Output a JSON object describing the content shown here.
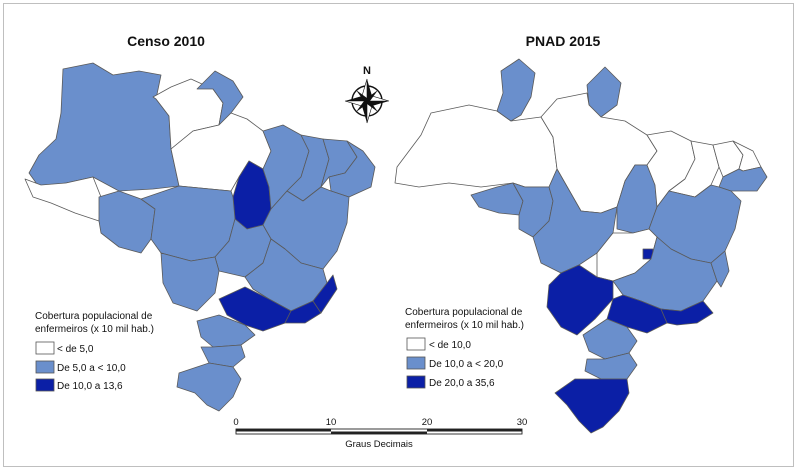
{
  "maps": [
    {
      "title": "Censo 2010",
      "legend": {
        "title_line1": "Cobertura populacional de",
        "title_line2": "enfermeiros (x 10 mil hab.)",
        "classes": [
          {
            "label": "< de 5,0",
            "color": "#ffffff"
          },
          {
            "label": "De 5,0 a < 10,0",
            "color": "#6a8fcc"
          },
          {
            "label": "De 10,0 a 13,6",
            "color": "#0b1fa6"
          }
        ]
      }
    },
    {
      "title": "PNAD 2015",
      "legend": {
        "title_line1": "Cobertura populacional de",
        "title_line2": "enfermeiros (x 10 mil hab.)",
        "classes": [
          {
            "label": "< de 10,0",
            "color": "#ffffff"
          },
          {
            "label": "De 10,0 a < 20,0",
            "color": "#6a8fcc"
          },
          {
            "label": "De 20,0 a 35,6",
            "color": "#0b1fa6"
          }
        ]
      }
    }
  ],
  "north_arrow": {
    "label": "N"
  },
  "scale_bar": {
    "ticks": [
      "0",
      "10",
      "20",
      "30"
    ],
    "unit_label": "Graus Decimais"
  }
}
